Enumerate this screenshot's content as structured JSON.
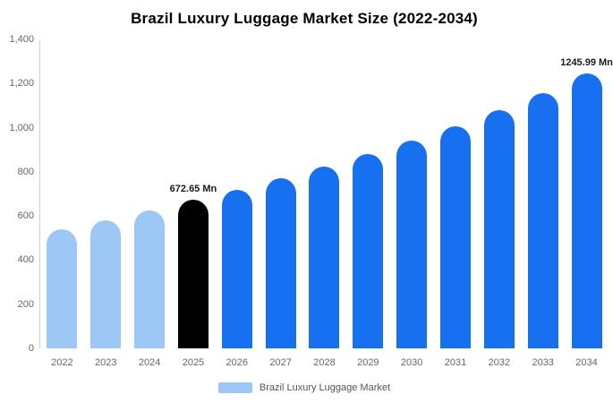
{
  "title": "Brazil Luxury Luggage Market Size (2022-2034)",
  "legend": {
    "label": "Brazil Luxury Luggage Market",
    "swatch_color": "#9DC8F5"
  },
  "colors": {
    "light": "#9DC8F5",
    "highlight": "#000000",
    "primary": "#1670F0"
  },
  "chart_data": {
    "type": "bar",
    "title": "Brazil Luxury Luggage Market Size (2022-2034)",
    "unit": "Mn",
    "ylim": [
      0,
      1400
    ],
    "ytick_labels": [
      "0",
      "200",
      "400",
      "600",
      "800",
      "1,000",
      "1,200",
      "1,400"
    ],
    "grid": false,
    "legend_position": "bottom",
    "categories": [
      "2022",
      "2023",
      "2024",
      "2025",
      "2026",
      "2027",
      "2028",
      "2029",
      "2030",
      "2031",
      "2032",
      "2033",
      "2034"
    ],
    "values": [
      540,
      580,
      625,
      672.65,
      718,
      770,
      822,
      880,
      942,
      1008,
      1078,
      1155,
      1245.99
    ],
    "bar_colors": [
      "light",
      "light",
      "light",
      "highlight",
      "primary",
      "primary",
      "primary",
      "primary",
      "primary",
      "primary",
      "primary",
      "primary",
      "primary"
    ],
    "data_labels": [
      null,
      null,
      null,
      "672.65 Mn",
      null,
      null,
      null,
      null,
      null,
      null,
      null,
      null,
      "1245.99 Mn"
    ]
  }
}
